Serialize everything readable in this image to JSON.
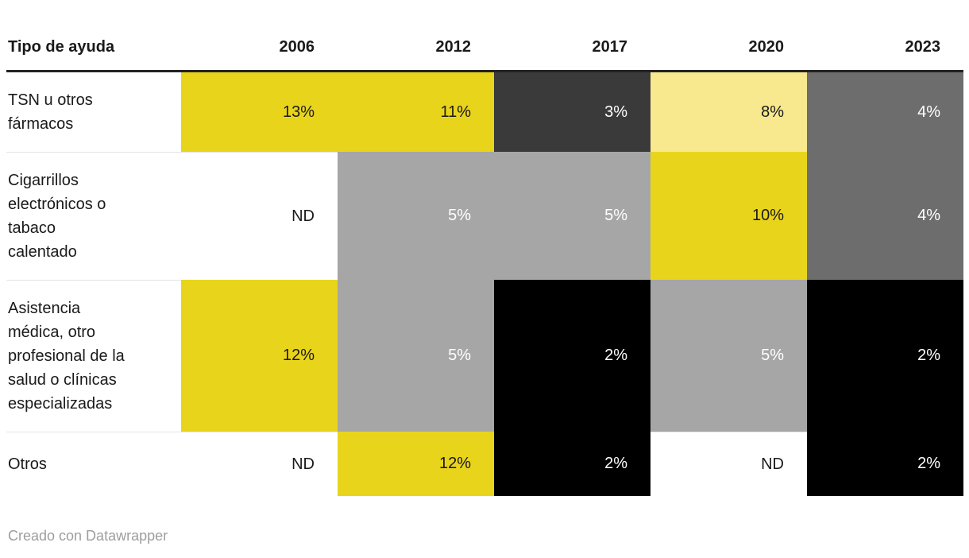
{
  "chart_data": {
    "type": "heatmap",
    "title": "",
    "row_header": "Tipo de ayuda",
    "columns": [
      "2006",
      "2012",
      "2017",
      "2020",
      "2023"
    ],
    "rows": [
      {
        "label": "TSN u otros fármacos",
        "values": [
          13,
          11,
          3,
          8,
          4
        ]
      },
      {
        "label": "Cigarrillos electrónicos o tabaco calentado",
        "values": [
          null,
          5,
          5,
          10,
          4
        ]
      },
      {
        "label": "Asistencia médica, otro profesional de la salud o clínicas especializadas",
        "values": [
          12,
          5,
          2,
          5,
          2
        ]
      },
      {
        "label": "Otros",
        "values": [
          null,
          12,
          2,
          null,
          2
        ]
      }
    ],
    "unit": "%",
    "no_data_label": "ND",
    "legend": "none",
    "color_scale": {
      "2": "#000000",
      "3": "#3a3a3a",
      "4": "#6d6d6d",
      "5": "#a6a6a6",
      "8": "#f8e88e",
      "10": "#e9d41c",
      "11": "#e9d41c",
      "12": "#e9d41c",
      "13": "#e9d41c",
      "ND": "#ffffff"
    }
  },
  "table": {
    "header": {
      "label": "Tipo de ayuda",
      "years": [
        "2006",
        "2012",
        "2017",
        "2020",
        "2023"
      ]
    },
    "rows": [
      {
        "label": "TSN u otros\nfármacos",
        "cells": [
          {
            "text": "13%",
            "bg": "#e9d41c",
            "fg": "#1a1a1a"
          },
          {
            "text": "11%",
            "bg": "#e9d41c",
            "fg": "#1a1a1a"
          },
          {
            "text": "3%",
            "bg": "#3a3a3a",
            "fg": "#ffffff"
          },
          {
            "text": "8%",
            "bg": "#f8e88e",
            "fg": "#1a1a1a"
          },
          {
            "text": "4%",
            "bg": "#6d6d6d",
            "fg": "#ffffff"
          }
        ]
      },
      {
        "label": "Cigarrillos\nelectrónicos o\ntabaco\ncalentado",
        "cells": [
          {
            "text": "ND",
            "bg": "#ffffff",
            "fg": "#1a1a1a"
          },
          {
            "text": "5%",
            "bg": "#a6a6a6",
            "fg": "#ffffff"
          },
          {
            "text": "5%",
            "bg": "#a6a6a6",
            "fg": "#ffffff"
          },
          {
            "text": "10%",
            "bg": "#e9d41c",
            "fg": "#1a1a1a"
          },
          {
            "text": "4%",
            "bg": "#6d6d6d",
            "fg": "#ffffff"
          }
        ]
      },
      {
        "label": "Asistencia\nmédica, otro\nprofesional de la\nsalud o clínicas\nespecializadas",
        "cells": [
          {
            "text": "12%",
            "bg": "#e9d41c",
            "fg": "#1a1a1a"
          },
          {
            "text": "5%",
            "bg": "#a6a6a6",
            "fg": "#ffffff"
          },
          {
            "text": "2%",
            "bg": "#000000",
            "fg": "#ffffff"
          },
          {
            "text": "5%",
            "bg": "#a6a6a6",
            "fg": "#ffffff"
          },
          {
            "text": "2%",
            "bg": "#000000",
            "fg": "#ffffff"
          }
        ]
      },
      {
        "label": "Otros",
        "cells": [
          {
            "text": "ND",
            "bg": "#ffffff",
            "fg": "#1a1a1a"
          },
          {
            "text": "12%",
            "bg": "#e9d41c",
            "fg": "#1a1a1a"
          },
          {
            "text": "2%",
            "bg": "#000000",
            "fg": "#ffffff"
          },
          {
            "text": "ND",
            "bg": "#ffffff",
            "fg": "#1a1a1a"
          },
          {
            "text": "2%",
            "bg": "#000000",
            "fg": "#ffffff"
          }
        ]
      }
    ]
  },
  "footer": {
    "text": "Creado con Datawrapper"
  }
}
